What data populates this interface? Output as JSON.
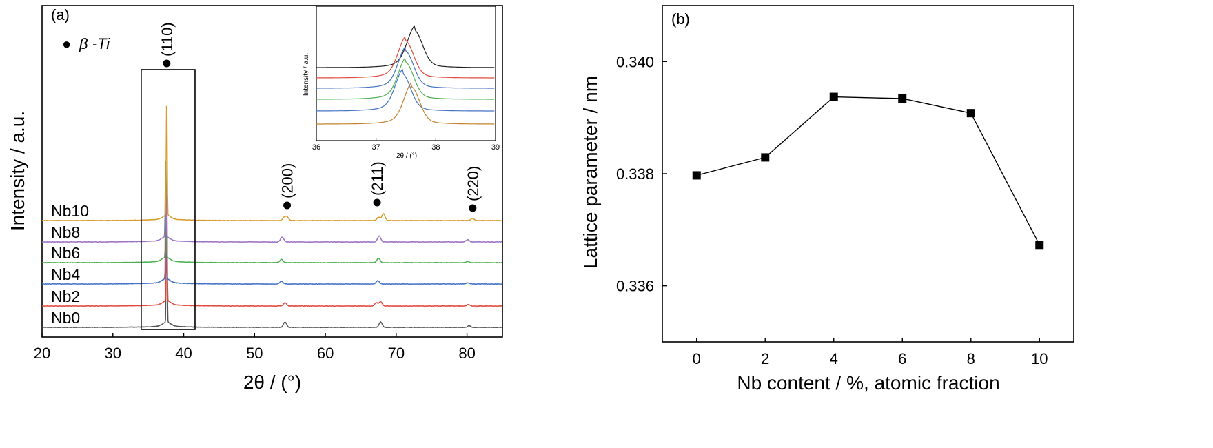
{
  "chart_data": [
    {
      "id": "a",
      "type": "line",
      "panel_label": "(a)",
      "xlabel": "2θ / (°)",
      "ylabel": "Intensity / a.u.",
      "xlim": [
        20,
        85
      ],
      "xticks": [
        20,
        30,
        40,
        50,
        60,
        70,
        80
      ],
      "legend": {
        "symbol": "●",
        "label": "β -Ti"
      },
      "peaks": [
        {
          "label": "(110)",
          "x": 37.5
        },
        {
          "label": "(200)",
          "x": 54.5
        },
        {
          "label": "(211)",
          "x": 67.2
        },
        {
          "label": "(220)",
          "x": 80.7
        }
      ],
      "series": [
        {
          "name": "Nb0",
          "color": "#555555",
          "peak_x": 37.6,
          "peak_height": 21,
          "minor_peaks": [
            [
              54.3,
              1
            ],
            [
              67.8,
              1
            ],
            [
              80.3,
              0.3
            ]
          ]
        },
        {
          "name": "Nb2",
          "color": "#e0493c",
          "peak_x": 37.6,
          "peak_height": 19,
          "minor_peaks": [
            [
              54.3,
              0.6
            ],
            [
              67.2,
              0.6
            ],
            [
              67.8,
              0.8
            ],
            [
              80.2,
              0.3
            ]
          ]
        },
        {
          "name": "Nb4",
          "color": "#4472c4",
          "peak_x": 37.5,
          "peak_height": 17,
          "minor_peaks": [
            [
              53.8,
              0.5
            ],
            [
              67.4,
              0.6
            ],
            [
              80.1,
              0.2
            ]
          ]
        },
        {
          "name": "Nb6",
          "color": "#4caf50",
          "peak_x": 37.5,
          "peak_height": 16,
          "minor_peaks": [
            [
              53.8,
              0.6
            ],
            [
              67.5,
              0.8
            ],
            [
              80.1,
              0.2
            ]
          ]
        },
        {
          "name": "Nb8",
          "color": "#9c73c4",
          "peak_x": 37.45,
          "peak_height": 12,
          "minor_peaks": [
            [
              53.9,
              0.9
            ],
            [
              67.6,
              1.1
            ],
            [
              80.1,
              0.4
            ]
          ]
        },
        {
          "name": "Nb10",
          "color": "#d99a2b",
          "peak_x": 37.6,
          "peak_height": 20.5,
          "minor_peaks": [
            [
              54.2,
              0.6
            ],
            [
              54.6,
              0.6
            ],
            [
              67.5,
              0.6
            ],
            [
              68.2,
              1.3
            ],
            [
              80.8,
              0.4
            ]
          ]
        }
      ],
      "highlight_box": {
        "x": [
          34,
          41.6
        ]
      },
      "inset": {
        "xlabel": "2θ / (°)",
        "ylabel": "Intensity / a.u.",
        "xlim": [
          36,
          39
        ],
        "xticks": [
          36,
          37,
          38,
          39
        ],
        "series": [
          {
            "color": "#222222",
            "peak_x": 37.65
          },
          {
            "color": "#e0493c",
            "peak_x": 37.5
          },
          {
            "color": "#4472c4",
            "peak_x": 37.5
          },
          {
            "color": "#4caf50",
            "peak_x": 37.5
          },
          {
            "color": "#4472c4",
            "peak_x": 37.45
          },
          {
            "color": "#c2822d",
            "peak_x": 37.6
          }
        ]
      }
    },
    {
      "id": "b",
      "type": "line",
      "panel_label": "(b)",
      "xlabel": "Nb content / %, atomic fraction",
      "ylabel": "Lattice parameter / nm",
      "xlim": [
        -1,
        11
      ],
      "ylim": [
        0.335,
        0.341
      ],
      "xticks": [
        0,
        2,
        4,
        6,
        8,
        10
      ],
      "yticks": [
        "0.336",
        "0.338",
        "0.340"
      ],
      "marker": "square",
      "x": [
        0,
        2,
        4,
        6,
        8,
        10
      ],
      "y": [
        0.33797,
        0.33829,
        0.33937,
        0.33934,
        0.33908,
        0.33673
      ]
    }
  ]
}
